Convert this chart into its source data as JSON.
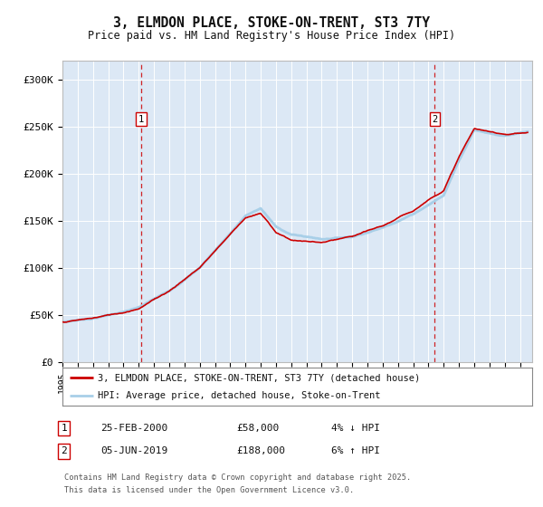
{
  "title": "3, ELMDON PLACE, STOKE-ON-TRENT, ST3 7TY",
  "subtitle": "Price paid vs. HM Land Registry's House Price Index (HPI)",
  "ylim": [
    0,
    320000
  ],
  "yticks": [
    0,
    50000,
    100000,
    150000,
    200000,
    250000,
    300000
  ],
  "ytick_labels": [
    "£0",
    "£50K",
    "£100K",
    "£150K",
    "£200K",
    "£250K",
    "£300K"
  ],
  "xlim_start": 1995.0,
  "xlim_end": 2025.8,
  "xticks": [
    1995,
    1996,
    1997,
    1998,
    1999,
    2000,
    2001,
    2002,
    2003,
    2004,
    2005,
    2006,
    2007,
    2008,
    2009,
    2010,
    2011,
    2012,
    2013,
    2014,
    2015,
    2016,
    2017,
    2018,
    2019,
    2020,
    2021,
    2022,
    2023,
    2024,
    2025
  ],
  "hpi_color": "#a8cfe8",
  "price_color": "#cc0000",
  "marker1_x": 2000.15,
  "marker1_y": 258000,
  "marker1_label": "1",
  "marker2_x": 2019.42,
  "marker2_y": 258000,
  "marker2_label": "2",
  "vline1_x": 2000.15,
  "vline2_x": 2019.42,
  "plot_bg": "#dce8f5",
  "fig_bg": "#ffffff",
  "legend_line1": "3, ELMDON PLACE, STOKE-ON-TRENT, ST3 7TY (detached house)",
  "legend_line2": "HPI: Average price, detached house, Stoke-on-Trent",
  "footnote_line1": "Contains HM Land Registry data © Crown copyright and database right 2025.",
  "footnote_line2": "This data is licensed under the Open Government Licence v3.0.",
  "table_row1_label": "1",
  "table_row1_date": "25-FEB-2000",
  "table_row1_price": "£58,000",
  "table_row1_hpi": "4% ↓ HPI",
  "table_row2_label": "2",
  "table_row2_date": "05-JUN-2019",
  "table_row2_price": "£188,000",
  "table_row2_hpi": "6% ↑ HPI"
}
